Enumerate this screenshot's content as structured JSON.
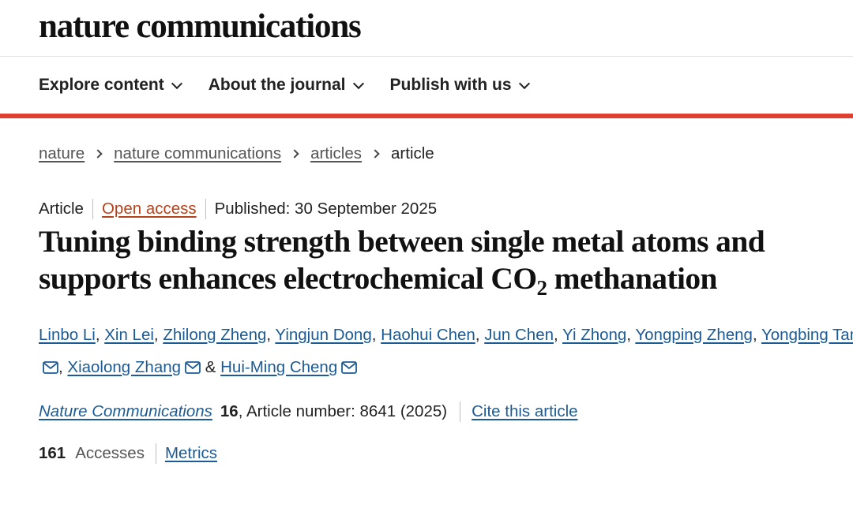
{
  "header": {
    "logo_text": "nature communications"
  },
  "nav": {
    "items": [
      {
        "label": "Explore content"
      },
      {
        "label": "About the journal"
      },
      {
        "label": "Publish with us"
      }
    ],
    "accent_color": "#e0402f"
  },
  "breadcrumb": {
    "items": [
      "nature",
      "nature communications",
      "articles"
    ],
    "current": "article"
  },
  "article": {
    "type": "Article",
    "access": "Open access",
    "published": "Published: 30 September 2025",
    "title_part1": "Tuning binding strength between single metal atoms and supports enhances electrochemical CO",
    "title_sub": "2",
    "title_part2": " methanation",
    "authors": [
      {
        "name": "Linbo Li",
        "sep": ", "
      },
      {
        "name": "Xin Lei",
        "sep": ", "
      },
      {
        "name": "Zhilong Zheng",
        "sep": ", "
      },
      {
        "name": "Yingjun Dong",
        "sep": ", "
      },
      {
        "name": "Haohui Chen",
        "sep": ", "
      },
      {
        "name": "Jun Chen",
        "sep": ", "
      },
      {
        "name": "Yi Zhong",
        "sep": ", "
      },
      {
        "name": "Yongping Zheng",
        "sep": ", "
      },
      {
        "name": "Yongbing Tang",
        "sep": ", "
      },
      {
        "name": "Xiaolong Zhang",
        "sep": " & "
      },
      {
        "name": "Hui-Ming Cheng",
        "sep": ""
      }
    ],
    "corresponding_icon": "mail-icon",
    "journal": "Nature Communications",
    "volume": "16",
    "article_number": ", Article number: 8641 (2025)",
    "cite_label": "Cite this article",
    "accesses_count": "161",
    "accesses_label": "Accesses",
    "metrics_label": "Metrics"
  },
  "colors": {
    "link": "#1c5b95",
    "open_access": "#b6421b"
  }
}
